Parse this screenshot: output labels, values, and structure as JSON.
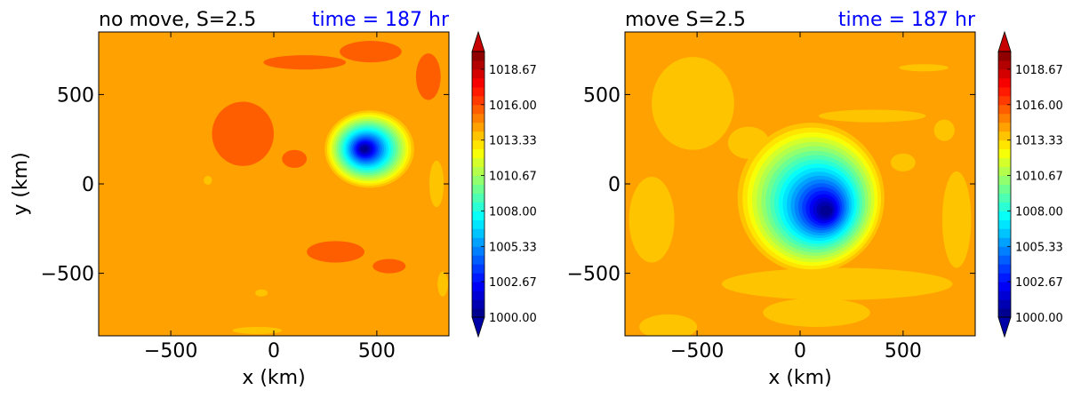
{
  "chart_data": [
    {
      "type": "heatmap",
      "title_left": "no move, S=2.5",
      "title_right": "time = 187 hr",
      "title_right_color": "#0000ff",
      "xlabel": "x (km)",
      "ylabel": "y (km)",
      "xlim": [
        -850,
        850
      ],
      "ylim": [
        -850,
        850
      ],
      "xticks": [
        -500,
        0,
        500
      ],
      "yticks": [
        -500,
        0,
        500
      ],
      "xtick_labels": [
        "−500",
        "0",
        "500"
      ],
      "ytick_labels": [
        "−500",
        "0",
        "500"
      ],
      "field": {
        "background_level": 1014.5,
        "center": [
          440,
          195
        ],
        "min_value": 999.5,
        "core_radius": 140,
        "scale_x": 1.0,
        "scale_y": 1.0,
        "skew_dx": 6,
        "skew_dy": 0
      },
      "patches": [
        {
          "x": 470,
          "y": 740,
          "rx": 150,
          "ry": 60,
          "level": 1015.33
        },
        {
          "x": 150,
          "y": 680,
          "rx": 200,
          "ry": 40,
          "level": 1015.33
        },
        {
          "x": 750,
          "y": 600,
          "rx": 60,
          "ry": 130,
          "level": 1015.33
        },
        {
          "x": -150,
          "y": 280,
          "rx": 150,
          "ry": 180,
          "level": 1015.33
        },
        {
          "x": 100,
          "y": 140,
          "rx": 60,
          "ry": 50,
          "level": 1015.33
        },
        {
          "x": 300,
          "y": -380,
          "rx": 140,
          "ry": 60,
          "level": 1015.33
        },
        {
          "x": 560,
          "y": -460,
          "rx": 80,
          "ry": 40,
          "level": 1015.33
        },
        {
          "x": 790,
          "y": 0,
          "rx": 35,
          "ry": 130,
          "level": 1013.33
        },
        {
          "x": -320,
          "y": 20,
          "rx": 20,
          "ry": 25,
          "level": 1013.33
        },
        {
          "x": -80,
          "y": -820,
          "rx": 120,
          "ry": 20,
          "level": 1013.33
        },
        {
          "x": -60,
          "y": -610,
          "rx": 30,
          "ry": 20,
          "level": 1013.33
        },
        {
          "x": 820,
          "y": -560,
          "rx": 25,
          "ry": 70,
          "level": 1013.33
        }
      ]
    },
    {
      "type": "heatmap",
      "title_left": "move S=2.5",
      "title_right": "time = 187 hr",
      "title_right_color": "#0000ff",
      "xlabel": "x (km)",
      "ylabel": "",
      "xlim": [
        -850,
        850
      ],
      "ylim": [
        -850,
        850
      ],
      "xticks": [
        -500,
        0,
        500
      ],
      "yticks": [
        -500,
        0,
        500
      ],
      "xtick_labels": [
        "−500",
        "0",
        "500"
      ],
      "ytick_labels": [
        "−500",
        "0",
        "500"
      ],
      "field": {
        "background_level": 1014.5,
        "center": [
          125,
          -150
        ],
        "min_value": 999.5,
        "core_radius": 230,
        "scale_x": 1.0,
        "scale_y": 1.18,
        "skew_dx": -18,
        "skew_dy": 18
      },
      "patches": [
        {
          "x": -520,
          "y": 450,
          "rx": 200,
          "ry": 260,
          "level": 1013.33
        },
        {
          "x": -250,
          "y": 230,
          "rx": 100,
          "ry": 90,
          "level": 1013.33
        },
        {
          "x": 350,
          "y": 380,
          "rx": 260,
          "ry": 35,
          "level": 1013.33
        },
        {
          "x": 600,
          "y": 650,
          "rx": 120,
          "ry": 20,
          "level": 1013.33
        },
        {
          "x": 180,
          "y": -560,
          "rx": 560,
          "ry": 90,
          "level": 1013.33
        },
        {
          "x": 80,
          "y": -720,
          "rx": 260,
          "ry": 80,
          "level": 1013.33
        },
        {
          "x": -720,
          "y": -200,
          "rx": 110,
          "ry": 240,
          "level": 1013.33
        },
        {
          "x": -640,
          "y": -800,
          "rx": 140,
          "ry": 70,
          "level": 1013.33
        },
        {
          "x": 760,
          "y": -200,
          "rx": 70,
          "ry": 270,
          "level": 1013.33
        },
        {
          "x": 500,
          "y": 120,
          "rx": 60,
          "ry": 50,
          "level": 1013.33
        },
        {
          "x": 700,
          "y": 300,
          "rx": 50,
          "ry": 60,
          "level": 1013.33
        }
      ]
    }
  ],
  "colorbar": {
    "vmin": 1000,
    "vmax": 1020,
    "levels": [
      1000,
      1000.67,
      1001.33,
      1002,
      1002.67,
      1003.33,
      1004,
      1004.67,
      1005.33,
      1006,
      1006.67,
      1007.33,
      1008,
      1008.67,
      1009.33,
      1010,
      1010.67,
      1011.33,
      1012,
      1012.67,
      1013.33,
      1014,
      1014.67,
      1015.33,
      1016,
      1016.67,
      1017.33,
      1018,
      1018.67,
      1019.33,
      1020
    ],
    "tick_labels": [
      "1000.00",
      "1002.67",
      "1005.33",
      "1008.00",
      "1010.67",
      "1013.33",
      "1016.00",
      "1018.67"
    ],
    "tick_values": [
      1000,
      1002.67,
      1005.33,
      1008,
      1010.67,
      1013.33,
      1016,
      1018.67
    ],
    "extend": "both",
    "colormap": "jet"
  }
}
